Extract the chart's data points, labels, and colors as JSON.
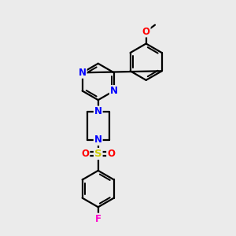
{
  "bg_color": "#ebebeb",
  "line_color": "#000000",
  "bond_width": 1.6,
  "atom_colors": {
    "N": "#0000ff",
    "O": "#ff0000",
    "S": "#cccc00",
    "F": "#ff00cc",
    "C": "#000000"
  },
  "font_size_atom": 8.5
}
